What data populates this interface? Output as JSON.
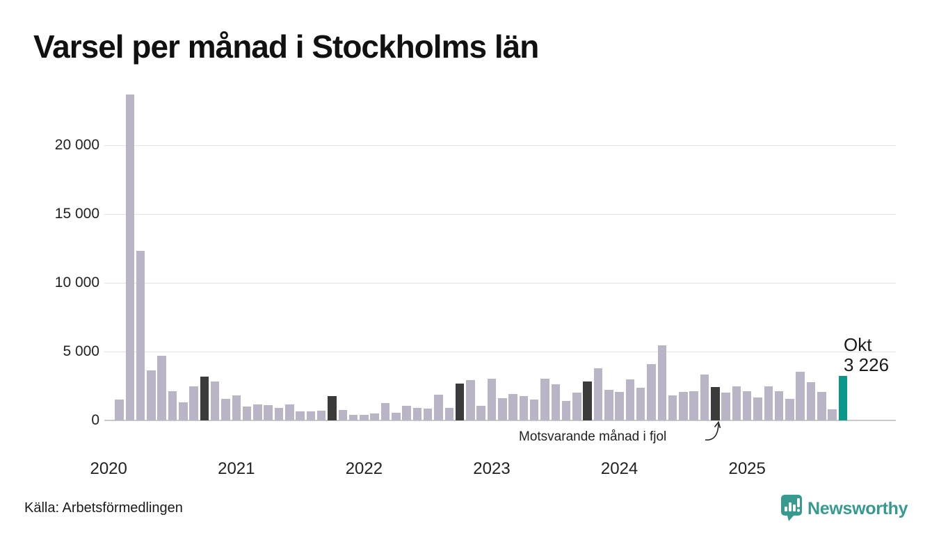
{
  "title": "Varsel per månad i Stockholms län",
  "source": "Källa: Arbetsförmedlingen",
  "brand": {
    "name": "Newsworthy",
    "color": "#379a8f"
  },
  "annotation": {
    "text": "Motsvarande månad i fjol"
  },
  "current_label": {
    "line1": "Okt",
    "line2": "3 226"
  },
  "colors": {
    "bar_default": "#b9b5c6",
    "bar_compare": "#3b3b3b",
    "bar_current": "#0d968a",
    "grid": "#e2e2e2",
    "axis": "#c9c9c9",
    "text": "#222222"
  },
  "chart_data": {
    "type": "bar",
    "title": "Varsel per månad i Stockholms län",
    "xlabel": "",
    "ylabel": "",
    "ylim": [
      0,
      24000
    ],
    "grid": true,
    "yticks": [
      0,
      5000,
      10000,
      15000,
      20000
    ],
    "ytick_labels": [
      "0",
      "5 000",
      "10 000",
      "15 000",
      "20 000"
    ],
    "year_ticks": [
      "2020",
      "2021",
      "2022",
      "2023",
      "2024",
      "2025"
    ],
    "highlight_current": "2025-10",
    "highlight_compare": [
      "2020-10",
      "2021-10",
      "2022-10",
      "2023-10",
      "2024-10"
    ],
    "months": [
      {
        "m": "2020-02",
        "v": 1500
      },
      {
        "m": "2020-03",
        "v": 23700
      },
      {
        "m": "2020-04",
        "v": 12300
      },
      {
        "m": "2020-05",
        "v": 3650
      },
      {
        "m": "2020-06",
        "v": 4700
      },
      {
        "m": "2020-07",
        "v": 2100
      },
      {
        "m": "2020-08",
        "v": 1300
      },
      {
        "m": "2020-09",
        "v": 2500
      },
      {
        "m": "2020-10",
        "v": 3200
      },
      {
        "m": "2020-11",
        "v": 2850
      },
      {
        "m": "2020-12",
        "v": 1550
      },
      {
        "m": "2021-01",
        "v": 1800
      },
      {
        "m": "2021-02",
        "v": 1000
      },
      {
        "m": "2021-03",
        "v": 1150
      },
      {
        "m": "2021-04",
        "v": 1100
      },
      {
        "m": "2021-05",
        "v": 900
      },
      {
        "m": "2021-06",
        "v": 1150
      },
      {
        "m": "2021-07",
        "v": 650
      },
      {
        "m": "2021-08",
        "v": 650
      },
      {
        "m": "2021-09",
        "v": 700
      },
      {
        "m": "2021-10",
        "v": 1750
      },
      {
        "m": "2021-11",
        "v": 750
      },
      {
        "m": "2021-12",
        "v": 380
      },
      {
        "m": "2022-01",
        "v": 400
      },
      {
        "m": "2022-02",
        "v": 500
      },
      {
        "m": "2022-03",
        "v": 1270
      },
      {
        "m": "2022-04",
        "v": 550
      },
      {
        "m": "2022-05",
        "v": 1050
      },
      {
        "m": "2022-06",
        "v": 930
      },
      {
        "m": "2022-07",
        "v": 850
      },
      {
        "m": "2022-08",
        "v": 1850
      },
      {
        "m": "2022-09",
        "v": 900
      },
      {
        "m": "2022-10",
        "v": 2700
      },
      {
        "m": "2022-11",
        "v": 2950
      },
      {
        "m": "2022-12",
        "v": 1050
      },
      {
        "m": "2023-01",
        "v": 3050
      },
      {
        "m": "2023-02",
        "v": 1600
      },
      {
        "m": "2023-03",
        "v": 1900
      },
      {
        "m": "2023-04",
        "v": 1750
      },
      {
        "m": "2023-05",
        "v": 1500
      },
      {
        "m": "2023-06",
        "v": 3050
      },
      {
        "m": "2023-07",
        "v": 2650
      },
      {
        "m": "2023-08",
        "v": 1400
      },
      {
        "m": "2023-09",
        "v": 2000
      },
      {
        "m": "2023-10",
        "v": 2850
      },
      {
        "m": "2023-11",
        "v": 3800
      },
      {
        "m": "2023-12",
        "v": 2200
      },
      {
        "m": "2024-01",
        "v": 2050
      },
      {
        "m": "2024-02",
        "v": 3000
      },
      {
        "m": "2024-03",
        "v": 2350
      },
      {
        "m": "2024-04",
        "v": 4100
      },
      {
        "m": "2024-05",
        "v": 5450
      },
      {
        "m": "2024-06",
        "v": 1800
      },
      {
        "m": "2024-07",
        "v": 2050
      },
      {
        "m": "2024-08",
        "v": 2100
      },
      {
        "m": "2024-09",
        "v": 3350
      },
      {
        "m": "2024-10",
        "v": 2400
      },
      {
        "m": "2024-11",
        "v": 2000
      },
      {
        "m": "2024-12",
        "v": 2450
      },
      {
        "m": "2025-01",
        "v": 2100
      },
      {
        "m": "2025-02",
        "v": 1650
      },
      {
        "m": "2025-03",
        "v": 2450
      },
      {
        "m": "2025-04",
        "v": 2100
      },
      {
        "m": "2025-05",
        "v": 1550
      },
      {
        "m": "2025-06",
        "v": 3550
      },
      {
        "m": "2025-07",
        "v": 2800
      },
      {
        "m": "2025-08",
        "v": 2050
      },
      {
        "m": "2025-09",
        "v": 800
      },
      {
        "m": "2025-10",
        "v": 3226
      }
    ]
  }
}
